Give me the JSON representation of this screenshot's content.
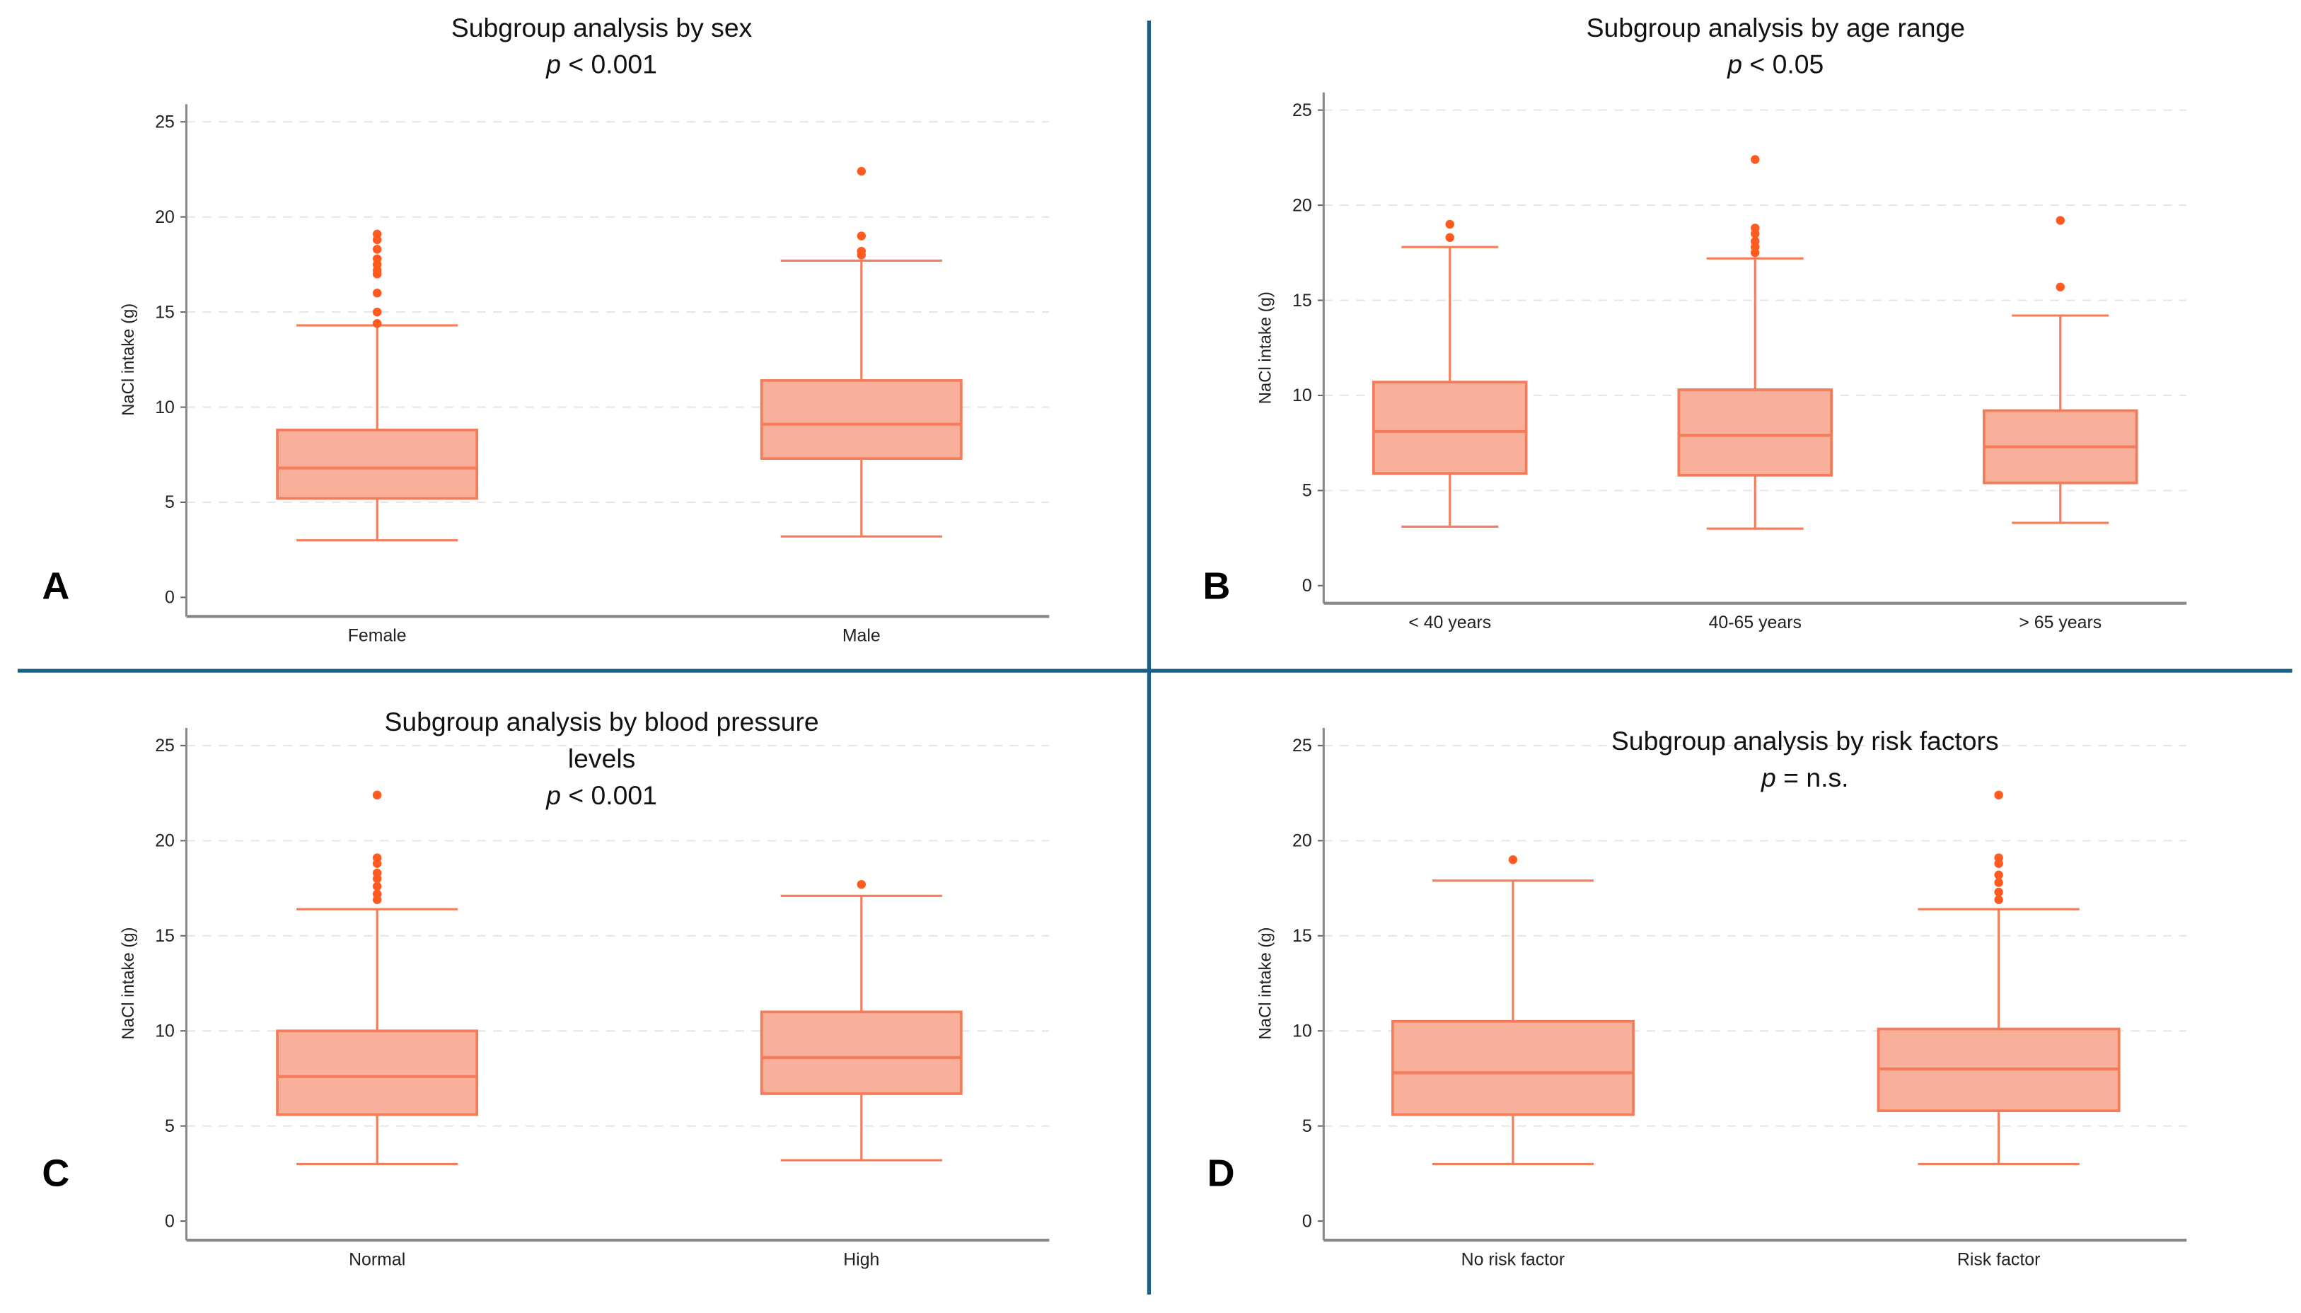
{
  "colors": {
    "box_fill": "#f9b09a",
    "box_stroke": "#f47c5a",
    "outlier": "#ff5a1f",
    "divider": "#1b5e86",
    "grid": "#e6e6e6"
  },
  "chart_data": [
    {
      "type": "box",
      "panel": "A",
      "title": [
        "Subgroup analysis by sex"
      ],
      "pvalue": {
        "p": "p",
        "text": " < 0.001"
      },
      "ylabel": "NaCl intake (g)",
      "xlabel": "",
      "ylim": [
        0,
        25
      ],
      "yticks": [
        0,
        5,
        10,
        15,
        20,
        25
      ],
      "grid": true,
      "categories": [
        "Female",
        "Male"
      ],
      "boxes": [
        {
          "low": 3.0,
          "q1": 5.2,
          "median": 6.8,
          "q3": 8.8,
          "high": 14.3,
          "outliers": [
            14.4,
            15.0,
            16.0,
            17.0,
            17.2,
            17.5,
            17.8,
            18.3,
            18.8,
            19.1
          ]
        },
        {
          "low": 3.2,
          "q1": 7.3,
          "median": 9.1,
          "q3": 11.4,
          "high": 17.7,
          "outliers": [
            18.0,
            18.2,
            19.0,
            22.4
          ]
        }
      ]
    },
    {
      "type": "box",
      "panel": "B",
      "title": [
        "Subgroup analysis by age range"
      ],
      "pvalue": {
        "p": "p",
        "text": " < 0.05"
      },
      "ylabel": "NaCl intake (g)",
      "xlabel": "",
      "ylim": [
        0,
        25
      ],
      "yticks": [
        0,
        5,
        10,
        15,
        20,
        25
      ],
      "grid": true,
      "categories": [
        "< 40 years",
        "40-65 years",
        "> 65 years"
      ],
      "boxes": [
        {
          "low": 3.1,
          "q1": 5.9,
          "median": 8.1,
          "q3": 10.7,
          "high": 17.8,
          "outliers": [
            18.3,
            19.0
          ]
        },
        {
          "low": 3.0,
          "q1": 5.8,
          "median": 7.9,
          "q3": 10.3,
          "high": 17.2,
          "outliers": [
            17.5,
            17.8,
            18.1,
            18.5,
            18.8,
            22.4
          ]
        },
        {
          "low": 3.3,
          "q1": 5.4,
          "median": 7.3,
          "q3": 9.2,
          "high": 14.2,
          "outliers": [
            15.7,
            19.2
          ]
        }
      ]
    },
    {
      "type": "box",
      "panel": "C",
      "title": [
        "Subgroup analysis by blood pressure",
        "levels"
      ],
      "pvalue": {
        "p": "p",
        "text": " < 0.001"
      },
      "ylabel": "NaCl intake (g)",
      "xlabel": "",
      "ylim": [
        0,
        25
      ],
      "yticks": [
        0,
        5,
        10,
        15,
        20,
        25
      ],
      "grid": true,
      "categories": [
        "Normal",
        "High"
      ],
      "boxes": [
        {
          "low": 3.0,
          "q1": 5.6,
          "median": 7.6,
          "q3": 10.0,
          "high": 16.4,
          "outliers": [
            16.9,
            17.2,
            17.6,
            18.0,
            18.3,
            18.8,
            19.1,
            22.4
          ]
        },
        {
          "low": 3.2,
          "q1": 6.7,
          "median": 8.6,
          "q3": 11.0,
          "high": 17.1,
          "outliers": [
            17.7
          ]
        }
      ]
    },
    {
      "type": "box",
      "panel": "D",
      "title": [
        "Subgroup analysis by risk factors"
      ],
      "pvalue": {
        "p": "p",
        "text": " = n.s."
      },
      "ylabel": "NaCl intake (g)",
      "xlabel": "",
      "ylim": [
        0,
        25
      ],
      "yticks": [
        0,
        5,
        10,
        15,
        20,
        25
      ],
      "grid": true,
      "categories": [
        "No risk factor",
        "Risk factor"
      ],
      "boxes": [
        {
          "low": 3.0,
          "q1": 5.6,
          "median": 7.8,
          "q3": 10.5,
          "high": 17.9,
          "outliers": [
            19.0
          ]
        },
        {
          "low": 3.0,
          "q1": 5.8,
          "median": 8.0,
          "q3": 10.1,
          "high": 16.4,
          "outliers": [
            16.9,
            17.3,
            17.8,
            18.2,
            18.8,
            19.1,
            22.4
          ]
        }
      ]
    }
  ]
}
